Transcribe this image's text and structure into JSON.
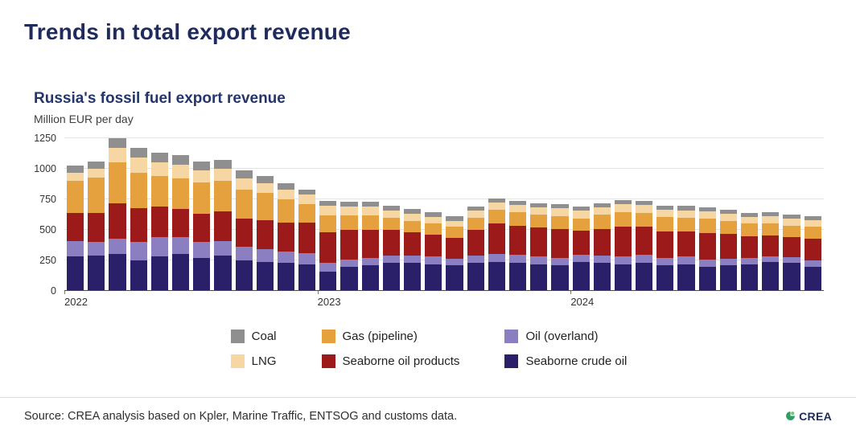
{
  "page": {
    "title": "Trends in total export revenue",
    "source": "Source: CREA analysis based on Kpler, Marine Traffic, ENTSOG and customs data.",
    "logo_text": "CREA",
    "logo_color": "#2e9e63"
  },
  "chart": {
    "title": "Russia's fossil fuel export revenue",
    "subtitle": "Million EUR per day"
  },
  "chart_data": {
    "type": "bar",
    "stacked": true,
    "title": "Russia's fossil fuel export revenue",
    "ylabel": "Million EUR per day",
    "ylim": [
      0,
      1250
    ],
    "yticks": [
      0,
      250,
      500,
      750,
      1000,
      1250
    ],
    "grid": true,
    "legend_position": "bottom",
    "categories": [
      "2022-01",
      "2022-02",
      "2022-03",
      "2022-04",
      "2022-05",
      "2022-06",
      "2022-07",
      "2022-08",
      "2022-09",
      "2022-10",
      "2022-11",
      "2022-12",
      "2023-01",
      "2023-02",
      "2023-03",
      "2023-04",
      "2023-05",
      "2023-06",
      "2023-07",
      "2023-08",
      "2023-09",
      "2023-10",
      "2023-11",
      "2023-12",
      "2024-01",
      "2024-02",
      "2024-03",
      "2024-04",
      "2024-05",
      "2024-06",
      "2024-07",
      "2024-08",
      "2024-09",
      "2024-10",
      "2024-11",
      "2024-12"
    ],
    "x_ticks": [
      {
        "label": "2022",
        "index": 0
      },
      {
        "label": "2023",
        "index": 12
      },
      {
        "label": "2024",
        "index": 24
      }
    ],
    "series": [
      {
        "name": "Seaborne crude oil",
        "color": "#2a2069",
        "values": [
          280,
          290,
          300,
          250,
          280,
          300,
          270,
          290,
          250,
          240,
          230,
          220,
          160,
          200,
          210,
          230,
          230,
          220,
          210,
          230,
          240,
          230,
          220,
          210,
          240,
          230,
          220,
          230,
          210,
          220,
          200,
          210,
          220,
          240,
          230,
          200
        ]
      },
      {
        "name": "Oil (overland)",
        "color": "#8b7fc2",
        "values": [
          130,
          110,
          130,
          150,
          160,
          140,
          130,
          120,
          110,
          100,
          90,
          90,
          70,
          60,
          60,
          60,
          60,
          60,
          55,
          60,
          65,
          65,
          60,
          60,
          55,
          60,
          65,
          65,
          60,
          60,
          60,
          55,
          50,
          45,
          45,
          50
        ]
      },
      {
        "name": "Seaborne oil products",
        "color": "#9c1b1a",
        "values": [
          230,
          240,
          290,
          280,
          250,
          230,
          230,
          240,
          230,
          240,
          240,
          250,
          250,
          240,
          230,
          210,
          190,
          180,
          170,
          210,
          250,
          240,
          240,
          240,
          200,
          220,
          240,
          230,
          220,
          210,
          215,
          200,
          180,
          170,
          165,
          180
        ]
      },
      {
        "name": "Gas (pipeline)",
        "color": "#e6a13f",
        "values": [
          260,
          290,
          330,
          290,
          250,
          250,
          260,
          250,
          240,
          220,
          190,
          150,
          140,
          120,
          120,
          100,
          90,
          90,
          90,
          100,
          110,
          110,
          105,
          105,
          100,
          115,
          120,
          115,
          115,
          110,
          115,
          105,
          100,
          100,
          95,
          95
        ]
      },
      {
        "name": "LNG",
        "color": "#f6d7a4",
        "values": [
          70,
          70,
          120,
          120,
          110,
          110,
          100,
          100,
          90,
          80,
          80,
          80,
          80,
          70,
          70,
          60,
          60,
          55,
          50,
          55,
          60,
          60,
          60,
          60,
          60,
          60,
          65,
          65,
          60,
          60,
          60,
          60,
          55,
          55,
          55,
          55
        ]
      },
      {
        "name": "Coal",
        "color": "#8f8f8f",
        "values": [
          60,
          60,
          80,
          80,
          80,
          80,
          70,
          70,
          70,
          60,
          50,
          40,
          40,
          40,
          40,
          40,
          40,
          40,
          35,
          35,
          35,
          35,
          35,
          35,
          35,
          35,
          35,
          35,
          35,
          35,
          35,
          35,
          35,
          35,
          35,
          35
        ]
      }
    ],
    "legend": [
      {
        "label": "Coal",
        "color": "#8f8f8f"
      },
      {
        "label": "Gas (pipeline)",
        "color": "#e6a13f"
      },
      {
        "label": "Oil (overland)",
        "color": "#8b7fc2"
      },
      {
        "label": "LNG",
        "color": "#f6d7a4"
      },
      {
        "label": "Seaborne oil products",
        "color": "#9c1b1a"
      },
      {
        "label": "Seaborne crude oil",
        "color": "#2a2069"
      }
    ]
  }
}
